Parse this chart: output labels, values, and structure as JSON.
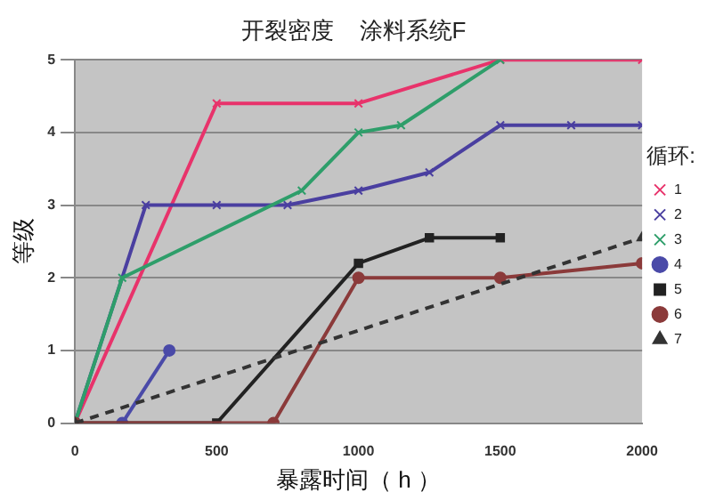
{
  "chart_data": {
    "type": "line",
    "title": "开裂密度    涂料系统F",
    "xlabel": "暴露时间（ h ）",
    "ylabel": "等级",
    "legend_title": "循环:",
    "xlim": [
      0,
      2000
    ],
    "xticks": [
      0,
      500,
      1000,
      1500,
      2000
    ],
    "ylim": [
      0,
      5
    ],
    "yticks": [
      0,
      1,
      2,
      3,
      4,
      5
    ],
    "grid": "y",
    "legend": "right",
    "series": [
      {
        "name": "1",
        "color": "#e8336b",
        "marker": "cross",
        "x": [
          0,
          500,
          1000,
          1500,
          2000
        ],
        "values": [
          0,
          4.4,
          4.4,
          5,
          5
        ]
      },
      {
        "name": "2",
        "color": "#4a3fa0",
        "marker": "cross",
        "x": [
          0,
          250,
          500,
          750,
          1000,
          1250,
          1500,
          1750,
          2000
        ],
        "values": [
          0,
          3,
          3,
          3,
          3.2,
          3.45,
          4.1,
          4.1,
          4.1
        ]
      },
      {
        "name": "3",
        "color": "#2e9e6a",
        "marker": "cross",
        "x": [
          0,
          167,
          800,
          1000,
          1150,
          1500
        ],
        "values": [
          0,
          2,
          3.2,
          4,
          4.1,
          5
        ]
      },
      {
        "name": "4",
        "color": "#4a4aa8",
        "marker": "circle",
        "x": [
          167,
          333
        ],
        "values": [
          0,
          1
        ]
      },
      {
        "name": "5",
        "color": "#222222",
        "marker": "square",
        "x": [
          0,
          500,
          1000,
          1250,
          1500
        ],
        "values": [
          0,
          0,
          2.2,
          2.55,
          2.55
        ]
      },
      {
        "name": "6",
        "color": "#8b3a3a",
        "marker": "circle",
        "x": [
          0,
          700,
          1000,
          1500,
          2000
        ],
        "values": [
          0,
          0,
          2,
          2,
          2.2
        ]
      },
      {
        "name": "7",
        "color": "#333333",
        "marker": "triangle",
        "line_style": "dashed",
        "x": [
          0,
          2000
        ],
        "values": [
          0,
          2.55
        ]
      }
    ]
  }
}
